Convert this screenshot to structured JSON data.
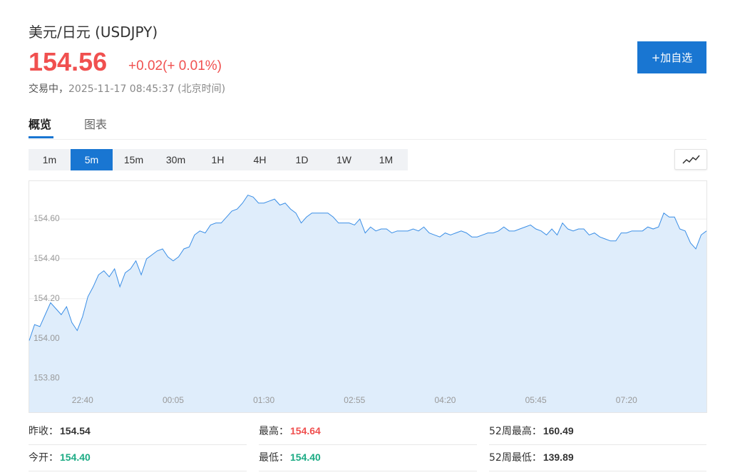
{
  "header": {
    "title": "美元/日元",
    "symbol": "(USDJPY)",
    "price": "154.56",
    "change": "+0.02",
    "change_pct": "(+ 0.01%)",
    "status": "交易中，",
    "time": "2025-11-17 08:45:37",
    "timezone": "(北京时间)",
    "button": "+加自选"
  },
  "tabs": [
    "概览",
    "图表"
  ],
  "periods": [
    "1m",
    "5m",
    "15m",
    "30m",
    "1H",
    "4H",
    "1D",
    "1W",
    "1M"
  ],
  "chart_data": {
    "type": "area",
    "color": "#3a8ee6",
    "categories": [
      null,
      null,
      null,
      null,
      null,
      null,
      null,
      null,
      null,
      null,
      "22:40",
      null,
      null,
      null,
      null,
      null,
      null,
      null,
      null,
      null,
      null,
      null,
      null,
      null,
      null,
      null,
      null,
      "00:05",
      null,
      null,
      null,
      null,
      null,
      null,
      null,
      null,
      null,
      null,
      null,
      null,
      null,
      null,
      null,
      null,
      "01:30",
      null,
      null,
      null,
      null,
      null,
      null,
      null,
      null,
      null,
      null,
      null,
      null,
      null,
      null,
      null,
      null,
      "02:55",
      null,
      null,
      null,
      null,
      null,
      null,
      null,
      null,
      null,
      null,
      null,
      null,
      null,
      null,
      null,
      null,
      "04:20",
      null,
      null,
      null,
      null,
      null,
      null,
      null,
      null,
      null,
      null,
      null,
      null,
      null,
      null,
      null,
      null,
      "05:45",
      null,
      null,
      null,
      null,
      null,
      null,
      null,
      null,
      null,
      null,
      null,
      null,
      null,
      null,
      null,
      null,
      "07:20",
      null,
      null,
      null,
      null,
      null,
      null,
      null,
      null,
      null,
      null,
      null,
      null,
      null,
      null,
      null
    ],
    "values": [
      153.99,
      154.07,
      154.06,
      154.12,
      154.18,
      154.15,
      154.12,
      154.16,
      154.08,
      154.04,
      154.11,
      154.21,
      154.26,
      154.32,
      154.34,
      154.31,
      154.35,
      154.26,
      154.33,
      154.35,
      154.39,
      154.32,
      154.4,
      154.42,
      154.44,
      154.45,
      154.41,
      154.39,
      154.41,
      154.45,
      154.46,
      154.52,
      154.54,
      154.53,
      154.57,
      154.58,
      154.58,
      154.61,
      154.64,
      154.65,
      154.68,
      154.72,
      154.71,
      154.68,
      154.68,
      154.69,
      154.7,
      154.67,
      154.68,
      154.65,
      154.63,
      154.58,
      154.61,
      154.63,
      154.63,
      154.63,
      154.63,
      154.61,
      154.58,
      154.58,
      154.58,
      154.57,
      154.6,
      154.53,
      154.56,
      154.54,
      154.55,
      154.55,
      154.53,
      154.54,
      154.54,
      154.54,
      154.55,
      154.54,
      154.56,
      154.53,
      154.52,
      154.51,
      154.53,
      154.52,
      154.53,
      154.54,
      154.53,
      154.51,
      154.51,
      154.52,
      154.53,
      154.53,
      154.54,
      154.56,
      154.54,
      154.54,
      154.55,
      154.56,
      154.57,
      154.55,
      154.54,
      154.52,
      154.55,
      154.52,
      154.58,
      154.55,
      154.54,
      154.55,
      154.55,
      154.52,
      154.53,
      154.51,
      154.5,
      154.49,
      154.49,
      154.53,
      154.53,
      154.54,
      154.54,
      154.54,
      154.56,
      154.55,
      154.56,
      154.63,
      154.61,
      154.61,
      154.55,
      154.54,
      154.48,
      154.45,
      154.52,
      154.54
    ],
    "ylim": [
      153.63,
      154.79
    ],
    "yticks": [
      {
        "value": 153.8,
        "label": "153.80"
      },
      {
        "value": 154,
        "label": "154.00"
      },
      {
        "value": 154.2,
        "label": "154.20"
      },
      {
        "value": 154.4,
        "label": "154.40"
      },
      {
        "value": 154.6,
        "label": "154.60"
      }
    ],
    "grid": true
  },
  "stats": [
    {
      "label": "昨收：",
      "value": "154.54"
    },
    {
      "label": "最高：",
      "value": "154.64"
    },
    {
      "label": "52周最高：",
      "value": "160.49"
    },
    {
      "label": "今开：",
      "value": "154.40"
    },
    {
      "label": "最低：",
      "value": "154.40"
    },
    {
      "label": "52周最低：",
      "value": "139.89"
    }
  ]
}
